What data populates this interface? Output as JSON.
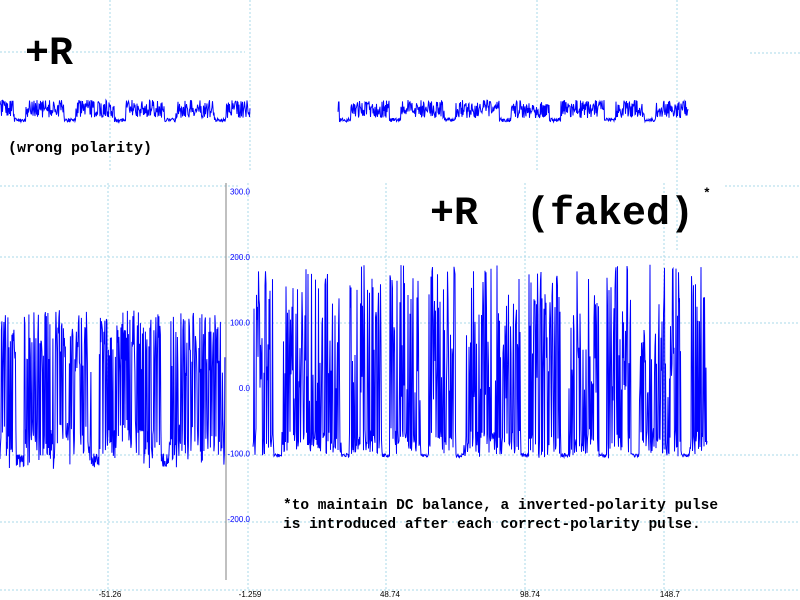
{
  "labels": {
    "top_title": "+R",
    "top_caption": "(wrong polarity)",
    "bottom_title": "+R  (faked)",
    "asterisk": "*",
    "footnote": "*to maintain DC balance, a inverted-polarity pulse is introduced after each correct-polarity pulse."
  },
  "colors": {
    "signal": "#0000ff",
    "grid": "#a8d8e8",
    "axis": "#808080",
    "tick_label": "#0000ff",
    "text": "#000000"
  },
  "chart_data": {
    "type": "line",
    "title": "",
    "xlabel": "",
    "ylabel": "",
    "x_ticks": [
      "-51.26",
      "-1.259",
      "48.74",
      "98.74",
      "148.7"
    ],
    "y_ticks": [
      "300.0",
      "200.0",
      "100.0",
      "0.0",
      "-100.0",
      "-200.0"
    ],
    "ylim": [
      -290,
      300
    ],
    "xlim": [
      -91.3,
      191
    ],
    "grid": true,
    "series": [
      {
        "x_range": [
          -91.3,
          -10.9
        ],
        "high_level": [
          20,
          120
        ],
        "low_level": [
          -100,
          -170
        ],
        "dips": [
          -84.1,
          -57.3,
          -32.3
        ]
      },
      {
        "x_range": [
          -0.9,
          161.4
        ],
        "high_level": [
          -20,
          190
        ],
        "low_level": [
          -100,
          -120
        ],
        "dips": [
          8,
          32,
          46.6,
          60.5,
          73,
          96.2,
          110.5,
          124,
          135.5,
          153.4
        ]
      }
    ]
  }
}
